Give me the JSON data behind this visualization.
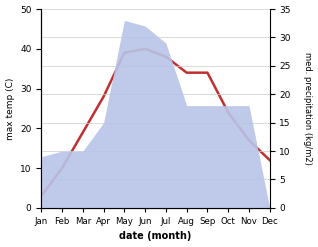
{
  "months": [
    "Jan",
    "Feb",
    "Mar",
    "Apr",
    "May",
    "Jun",
    "Jul",
    "Aug",
    "Sep",
    "Oct",
    "Nov",
    "Dec"
  ],
  "temperature": [
    3,
    10,
    19,
    28,
    39,
    40,
    38,
    34,
    34,
    24,
    17,
    12
  ],
  "precipitation": [
    9,
    10,
    10,
    15,
    33,
    32,
    29,
    18,
    18,
    18,
    18,
    0
  ],
  "temp_color": "#c03030",
  "precip_color_fill": "#b8c4e8",
  "temp_ylim": [
    0,
    50
  ],
  "precip_ylim": [
    0,
    35
  ],
  "temp_yticks": [
    0,
    10,
    20,
    30,
    40,
    50
  ],
  "precip_yticks": [
    0,
    5,
    10,
    15,
    20,
    25,
    30,
    35
  ],
  "xlabel": "date (month)",
  "ylabel_left": "max temp (C)",
  "ylabel_right": "med. precipitation (kg/m2)",
  "background_color": "#ffffff",
  "fig_width": 3.18,
  "fig_height": 2.47,
  "dpi": 100
}
